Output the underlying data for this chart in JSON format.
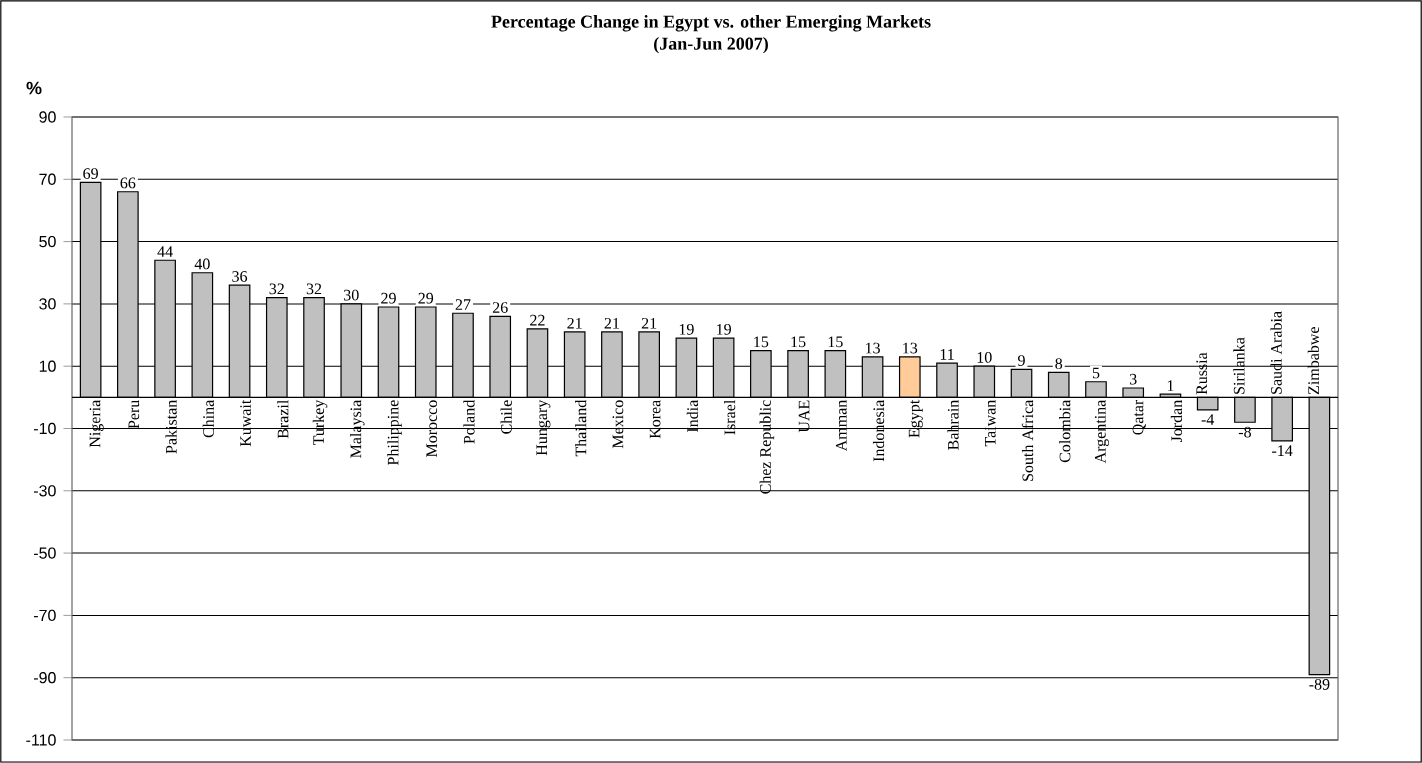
{
  "chart_data": {
    "type": "bar",
    "title": "Percentage Change in Egypt vs. other Emerging Markets",
    "subtitle": "(Jan-Jun 2007)",
    "ylabel": "%",
    "categories": [
      "Nigeria",
      "Peru",
      "Pakistan",
      "China",
      "Kuwait",
      "Brazil",
      "Turkey",
      "Malaysia",
      "Philippine",
      "Morocco",
      "Poland",
      "Chile",
      "Hungary",
      "Thailand",
      "Mexico",
      "Korea",
      "India",
      "Israel",
      "Chez Republic",
      "UAE",
      "Amman",
      "Indonesia",
      "Egypt",
      "Bahrain",
      "Taiwan",
      "South Africa",
      "Colombia",
      "Argentina",
      "Qatar",
      "Jordan",
      "Russia",
      "Sirilanka",
      "Saudi Arabia",
      "Zimbabwe"
    ],
    "values": [
      69,
      66,
      44,
      40,
      36,
      32,
      32,
      30,
      29,
      29,
      27,
      26,
      22,
      21,
      21,
      21,
      19,
      19,
      15,
      15,
      15,
      13,
      13,
      11,
      10,
      9,
      8,
      5,
      3,
      1,
      -4,
      -8,
      -14,
      -89
    ],
    "colors": [
      "#c0c0c0",
      "#c0c0c0",
      "#c0c0c0",
      "#c0c0c0",
      "#c0c0c0",
      "#c0c0c0",
      "#c0c0c0",
      "#c0c0c0",
      "#c0c0c0",
      "#c0c0c0",
      "#c0c0c0",
      "#c0c0c0",
      "#c0c0c0",
      "#c0c0c0",
      "#c0c0c0",
      "#c0c0c0",
      "#c0c0c0",
      "#c0c0c0",
      "#c0c0c0",
      "#c0c0c0",
      "#c0c0c0",
      "#c0c0c0",
      "#ffcc99",
      "#c0c0c0",
      "#c0c0c0",
      "#c0c0c0",
      "#c0c0c0",
      "#c0c0c0",
      "#c0c0c0",
      "#c0c0c0",
      "#c0c0c0",
      "#c0c0c0",
      "#c0c0c0",
      "#c0c0c0"
    ],
    "ylim": [
      -110,
      90
    ],
    "yticks": [
      -110,
      -90,
      -70,
      -50,
      -30,
      -10,
      10,
      30,
      50,
      70,
      90
    ],
    "grid": "y",
    "data_labels": true
  }
}
